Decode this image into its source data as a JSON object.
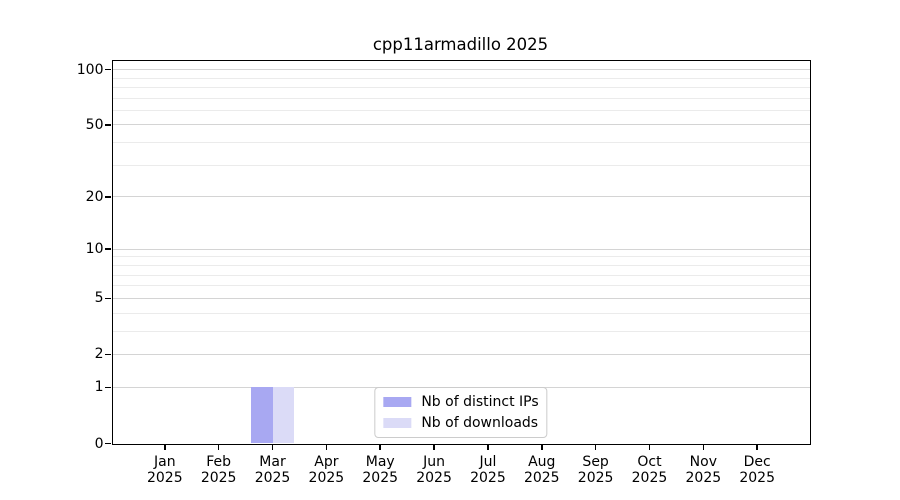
{
  "title": "cpp11armadillo 2025",
  "chart_data": {
    "type": "bar",
    "title": "cpp11armadillo 2025",
    "categories": [
      "Jan 2025",
      "Feb 2025",
      "Mar 2025",
      "Apr 2025",
      "May 2025",
      "Jun 2025",
      "Jul 2025",
      "Aug 2025",
      "Sep 2025",
      "Oct 2025",
      "Nov 2025",
      "Dec 2025"
    ],
    "series": [
      {
        "name": "Nb of distinct IPs",
        "color": "#a8a8f2",
        "values": [
          0,
          0,
          1,
          0,
          0,
          0,
          0,
          0,
          0,
          0,
          0,
          0
        ]
      },
      {
        "name": "Nb of downloads",
        "color": "#dbdbf7",
        "values": [
          0,
          0,
          1,
          0,
          0,
          0,
          0,
          0,
          0,
          0,
          0,
          0
        ]
      }
    ],
    "xlabel": "",
    "ylabel": "",
    "yscale": "log1p",
    "ylim": [
      0,
      112
    ],
    "y_major_ticks": [
      0,
      1,
      2,
      5,
      10,
      20,
      50,
      100
    ],
    "y_minor_ticks": [
      3,
      4,
      6,
      7,
      8,
      9,
      30,
      40,
      60,
      70,
      80,
      90
    ],
    "grid": "horizontal",
    "legend_position": "lower center",
    "bar_width_fraction": 0.4
  },
  "legend": {
    "items": [
      {
        "label": "Nb of distinct IPs",
        "color": "#a8a8f2"
      },
      {
        "label": "Nb of downloads",
        "color": "#dbdbf7"
      }
    ]
  },
  "colors": {
    "major_grid": "#d4d4d4",
    "minor_grid": "#ebebeb",
    "spine": "#000000",
    "text": "#000000",
    "background": "#ffffff",
    "legend_border": "#cccccc"
  }
}
